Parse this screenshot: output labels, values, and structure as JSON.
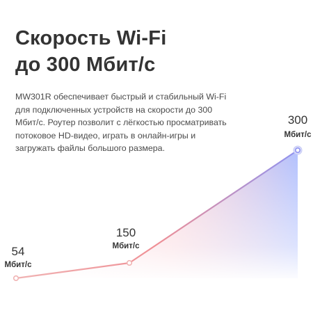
{
  "heading": {
    "line1": "Скорость Wi-Fi",
    "line2": "до 300 Мбит/с"
  },
  "description": "MW301R обеспечивает быстрый и стабильный Wi-Fi для подключенных устройств на скорости до 300 Мбит/с. Роутер позволит с лёгкостью просматривать потоковое HD-видео, играть в онлайн-игры и загружать файлы большого размера.",
  "chart_data": {
    "type": "line",
    "unit": "Мбит/с",
    "points": [
      {
        "value": 54,
        "value_label": "54",
        "unit_label": "Мбит/с"
      },
      {
        "value": 150,
        "value_label": "150",
        "unit_label": "Мбит/с"
      },
      {
        "value": 300,
        "value_label": "300",
        "unit_label": "Мбит/с"
      }
    ],
    "line_colors": {
      "start": "#f0b3b3",
      "mid": "#ef8f95",
      "end": "#8f93f0"
    },
    "fill_colors": {
      "warm": "#f6b7c2",
      "cool": "#aebdfd"
    },
    "marker_color": "#d9dcf9"
  }
}
